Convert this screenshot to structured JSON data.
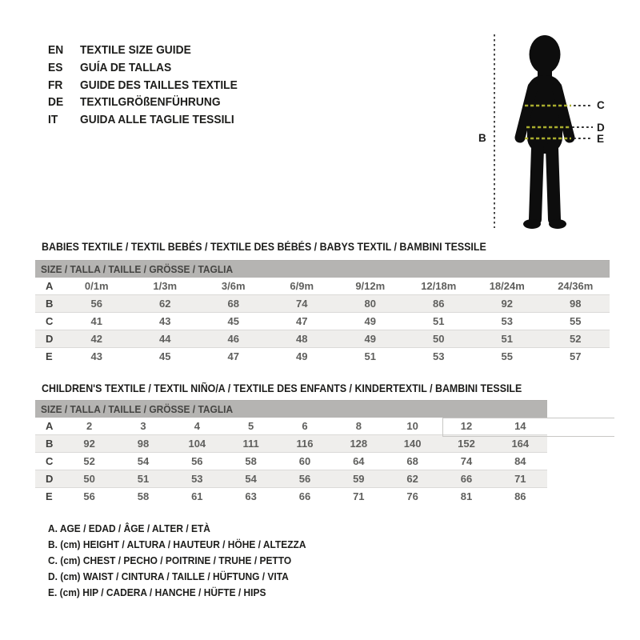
{
  "languages": [
    {
      "code": "EN",
      "label": "TEXTILE SIZE GUIDE"
    },
    {
      "code": "ES",
      "label": "GUÍA DE TALLAS"
    },
    {
      "code": "FR",
      "label": "GUIDE DES TAILLES TEXTILE"
    },
    {
      "code": "DE",
      "label": "TEXTILGRÖßENFÜHRUNG"
    },
    {
      "code": "IT",
      "label": "GUIDA ALLE TAGLIE TESSILI"
    }
  ],
  "figure": {
    "labels": {
      "b": "B",
      "c": "C",
      "d": "D",
      "e": "E"
    },
    "silhouette_color": "#0d0d0d",
    "dash_on_body_color": "#a9ad2e",
    "dash_off_body_color": "#1a1a1a"
  },
  "babies": {
    "heading": "BABIES TEXTILE / TEXTIL BEBÉS / TEXTILE DES BÉBÉS / BABYS TEXTIL  / BAMBINI TESSILE",
    "size_header": "SIZE / TALLA / TAILLE / GRÖSSE / TAGLIA",
    "rows": [
      {
        "label": "A",
        "values": [
          "0/1m",
          "1/3m",
          "3/6m",
          "6/9m",
          "9/12m",
          "12/18m",
          "18/24m",
          "24/36m"
        ]
      },
      {
        "label": "B",
        "values": [
          56,
          62,
          68,
          74,
          80,
          86,
          92,
          98
        ]
      },
      {
        "label": "C",
        "values": [
          41,
          43,
          45,
          47,
          49,
          51,
          53,
          55
        ]
      },
      {
        "label": "D",
        "values": [
          42,
          44,
          46,
          48,
          49,
          50,
          51,
          52
        ]
      },
      {
        "label": "E",
        "values": [
          43,
          45,
          47,
          49,
          51,
          53,
          55,
          57
        ]
      }
    ]
  },
  "children": {
    "heading": "CHILDREN'S TEXTILE / TEXTIL NIÑO/A / TEXTILE DES ENFANTS / KINDERTEXTIL / BAMBINI TESSILE",
    "size_header": "SIZE / TALLA / TAILLE / GRÖSSE / TAGLIA",
    "rows": [
      {
        "label": "A",
        "values": [
          2,
          3,
          4,
          5,
          6,
          8,
          10,
          12,
          14
        ]
      },
      {
        "label": "B",
        "values": [
          92,
          98,
          104,
          111,
          116,
          128,
          140,
          152,
          164
        ]
      },
      {
        "label": "C",
        "values": [
          52,
          54,
          56,
          58,
          60,
          64,
          68,
          74,
          84
        ]
      },
      {
        "label": "D",
        "values": [
          50,
          51,
          53,
          54,
          56,
          59,
          62,
          66,
          71
        ]
      },
      {
        "label": "E",
        "values": [
          56,
          58,
          61,
          63,
          66,
          71,
          76,
          81,
          86
        ]
      }
    ]
  },
  "legend": [
    "A. AGE / EDAD / ÂGE / ALTER / ETÀ",
    "B. (cm) HEIGHT / ALTURA / HAUTEUR / HÖHE / ALTEZZA",
    "C. (cm) CHEST / PECHO / POITRINE / TRUHE / PETTO",
    "D. (cm) WAIST / CINTURA / TAILLE / HÜFTUNG / VITA",
    "E. (cm) HIP / CADERA / HANCHE / HÜFTE / HIPS"
  ],
  "colors": {
    "header_bar": "#b5b4b2",
    "row_stripe": "#efeeec",
    "accent_dash": "#a9ad2e",
    "text_dark": "#1d1d1b"
  }
}
